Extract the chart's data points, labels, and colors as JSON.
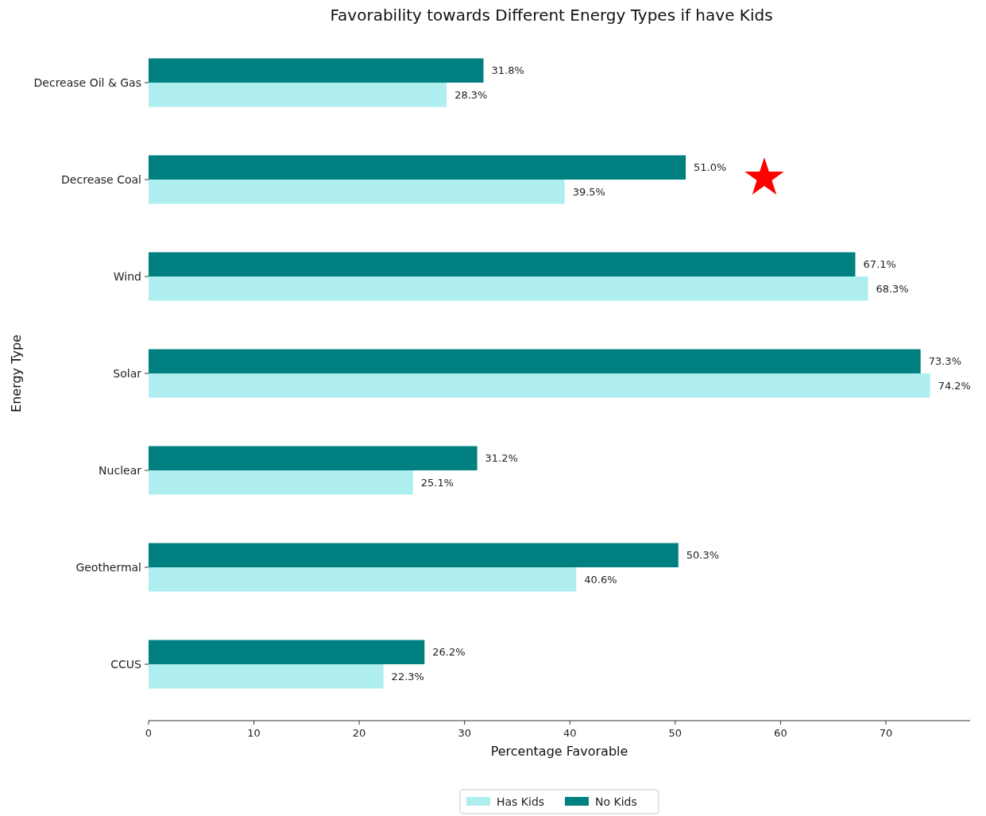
{
  "chart_data": {
    "type": "bar",
    "orientation": "horizontal",
    "title": "Favorability towards Different Energy Types if have Kids",
    "xlabel": "Percentage Favorable",
    "ylabel": "Energy Type",
    "categories": [
      "Decrease Oil & Gas",
      "Decrease Coal",
      "Wind",
      "Solar",
      "Nuclear",
      "Geothermal",
      "CCUS"
    ],
    "series": [
      {
        "name": "Has Kids",
        "color": "#afeeee",
        "values": [
          28.3,
          39.5,
          68.3,
          74.2,
          25.1,
          40.6,
          22.3
        ],
        "value_labels": [
          "28.3%",
          "39.5%",
          "68.3%",
          "74.2%",
          "25.1%",
          "40.6%",
          "22.3%"
        ]
      },
      {
        "name": "No Kids",
        "color": "#008080",
        "values": [
          31.8,
          51.0,
          67.1,
          73.3,
          31.2,
          50.3,
          26.2
        ],
        "value_labels": [
          "31.8%",
          "51.0%",
          "67.1%",
          "73.3%",
          "31.2%",
          "50.3%",
          "26.2%"
        ]
      }
    ],
    "xlim": [
      0,
      78
    ],
    "xticks": [
      0,
      10,
      20,
      30,
      40,
      50,
      60,
      70
    ],
    "grid": false,
    "legend": "bottom"
  }
}
